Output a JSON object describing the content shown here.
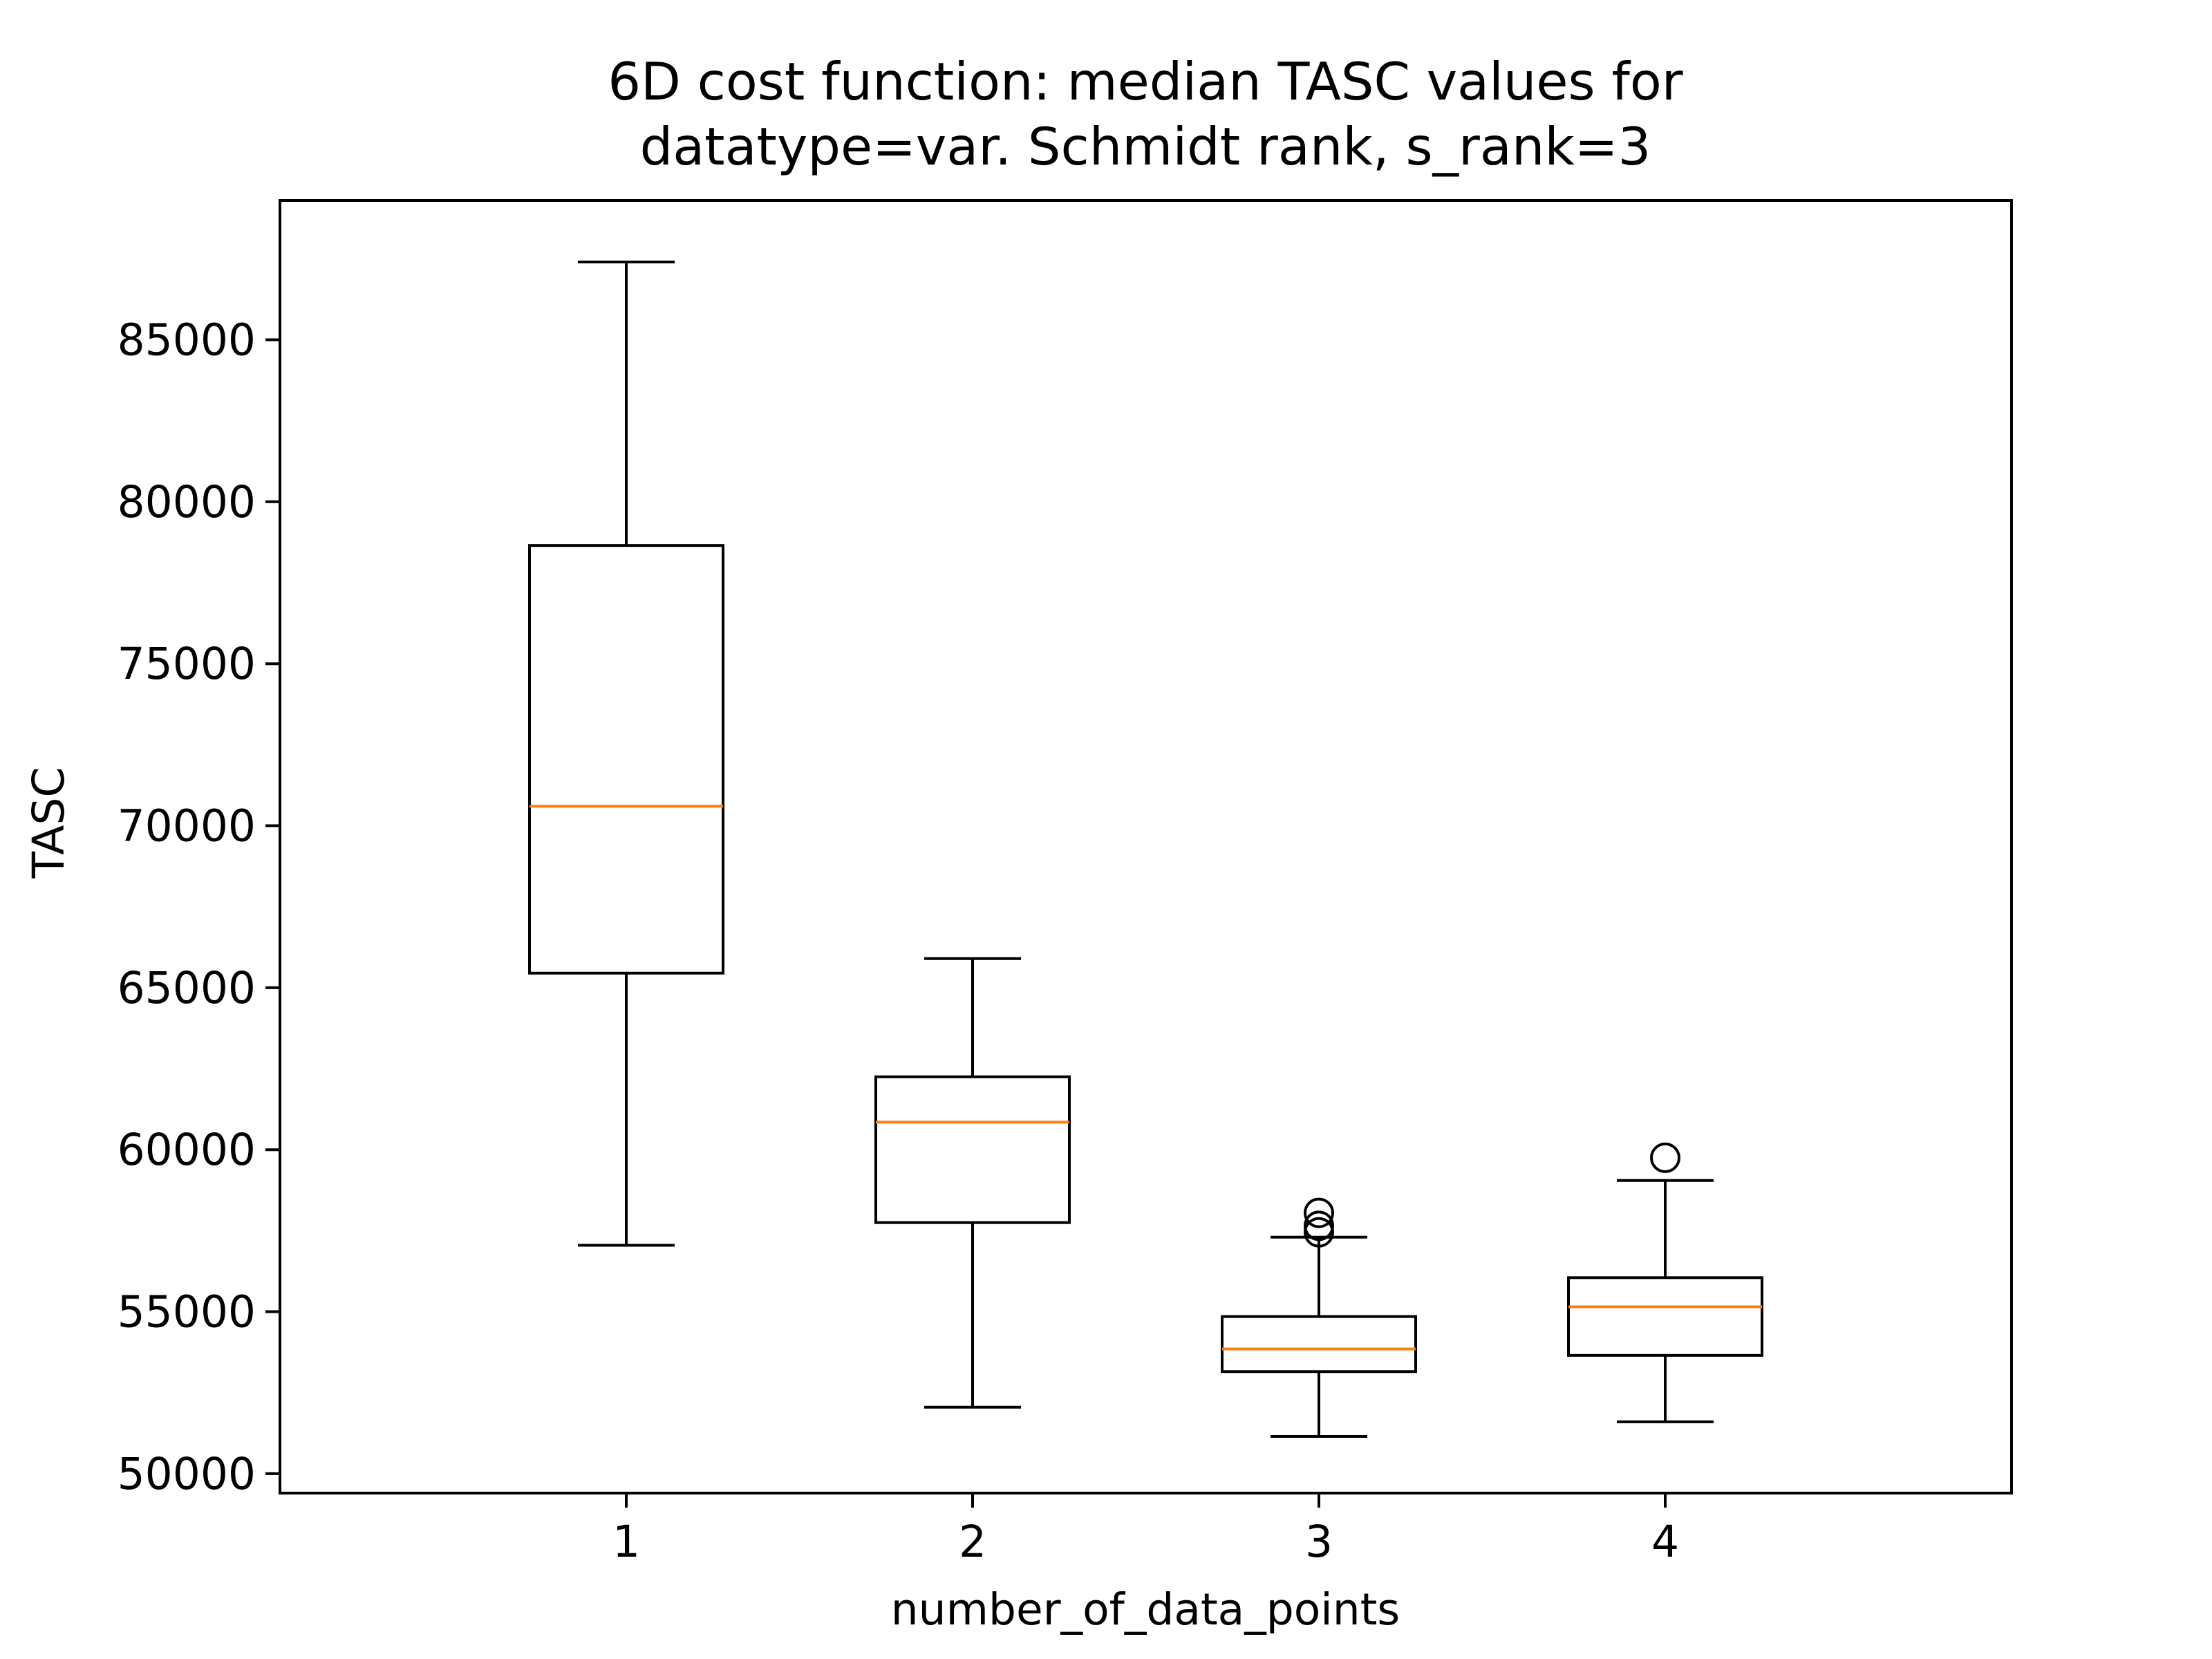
{
  "chart_data": {
    "type": "box",
    "title_lines": [
      "6D cost function: median TASC values for",
      "datatype=var. Schmidt rank, s_rank=3"
    ],
    "xlabel": "number_of_data_points",
    "ylabel": "TASC",
    "categories": [
      "1",
      "2",
      "3",
      "4"
    ],
    "ylim": [
      49400,
      89300
    ],
    "yticks": [
      50000,
      55000,
      60000,
      65000,
      70000,
      75000,
      80000,
      85000
    ],
    "grid": false,
    "box_color": "#000000",
    "median_color": "#ff7f0e",
    "boxes": [
      {
        "category": "1",
        "whisker_low": 57050,
        "q1": 65450,
        "median": 70600,
        "q3": 78650,
        "whisker_high": 87400,
        "outliers": []
      },
      {
        "category": "2",
        "whisker_low": 52050,
        "q1": 57750,
        "median": 60850,
        "q3": 62250,
        "whisker_high": 65900,
        "outliers": []
      },
      {
        "category": "3",
        "whisker_low": 51150,
        "q1": 53150,
        "median": 53850,
        "q3": 54850,
        "whisker_high": 57300,
        "outliers": [
          57450,
          57650,
          58050
        ]
      },
      {
        "category": "4",
        "whisker_low": 51600,
        "q1": 53650,
        "median": 55150,
        "q3": 56050,
        "whisker_high": 59050,
        "outliers": [
          59750
        ]
      }
    ]
  }
}
